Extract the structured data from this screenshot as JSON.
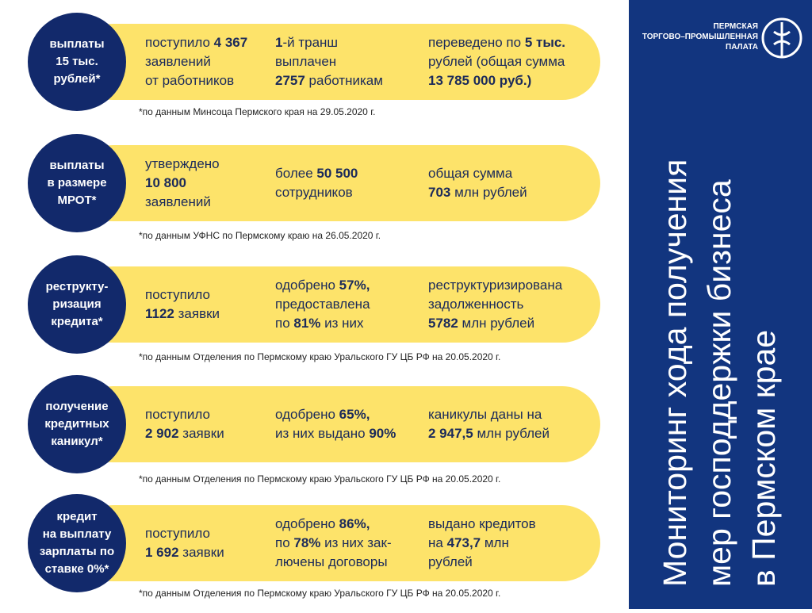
{
  "logo": [
    "ПЕРМСКАЯ",
    "ТОРГОВО–ПРОМЫШЛЕННАЯ",
    "ПАЛАТА"
  ],
  "title": [
    "Мониторинг хода получения",
    "мер господдержки бизнеса",
    "в Пермском крае"
  ],
  "rows": [
    {
      "label": [
        "выплаты",
        "15 тыс.",
        "рублей*"
      ],
      "cells": [
        [
          [
            {
              "t": "поступило "
            },
            {
              "t": "4 367",
              "b": true
            }
          ],
          [
            {
              "t": "заявлений"
            }
          ],
          [
            {
              "t": "от работников"
            }
          ]
        ],
        [
          [
            {
              "t": "1",
              "b": true
            },
            {
              "t": "-й транш"
            }
          ],
          [
            {
              "t": "выплачен"
            }
          ],
          [
            {
              "t": "2757",
              "b": true
            },
            {
              "t": " работникам"
            }
          ]
        ],
        [
          [
            {
              "t": "переведено по "
            },
            {
              "t": "5 тыс.",
              "b": true
            }
          ],
          [
            {
              "t": "рублей (общая сумма"
            }
          ],
          [
            {
              "t": "13 785 000 руб.)",
              "b": true
            }
          ]
        ]
      ],
      "note": "*по данным Минсоца Пермского края на 29.05.2020 г."
    },
    {
      "label": [
        "выплаты",
        "в размере",
        "МРОТ*"
      ],
      "cells": [
        [
          [
            {
              "t": "утверждено"
            }
          ],
          [
            {
              "t": "10 800",
              "b": true
            }
          ],
          [
            {
              "t": "заявлений"
            }
          ]
        ],
        [
          [
            {
              "t": "более "
            },
            {
              "t": "50 500",
              "b": true
            }
          ],
          [
            {
              "t": "сотрудников"
            }
          ]
        ],
        [
          [
            {
              "t": "общая сумма"
            }
          ],
          [
            {
              "t": "703",
              "b": true
            },
            {
              "t": " млн рублей"
            }
          ]
        ]
      ],
      "note": "*по данным УФНС по Пермскому краю на 26.05.2020 г."
    },
    {
      "label": [
        "реструкту-",
        "ризация",
        "кредита*"
      ],
      "cells": [
        [
          [
            {
              "t": "поступило"
            }
          ],
          [
            {
              "t": "1122",
              "b": true
            },
            {
              "t": " заявки"
            }
          ]
        ],
        [
          [
            {
              "t": "одобрено "
            },
            {
              "t": "57%,",
              "b": true
            }
          ],
          [
            {
              "t": "предоставлена"
            }
          ],
          [
            {
              "t": "по "
            },
            {
              "t": "81%",
              "b": true
            },
            {
              "t": " из них"
            }
          ]
        ],
        [
          [
            {
              "t": "реструктуризирована"
            }
          ],
          [
            {
              "t": "задолженность"
            }
          ],
          [
            {
              "t": "5782",
              "b": true
            },
            {
              "t": " млн рублей"
            }
          ]
        ]
      ],
      "note": "*по данным Отделения по Пермскому краю Уральского ГУ ЦБ РФ на 20.05.2020 г."
    },
    {
      "label": [
        "получение",
        "кредитных",
        "каникул*"
      ],
      "cells": [
        [
          [
            {
              "t": "поступило"
            }
          ],
          [
            {
              "t": "2 902",
              "b": true
            },
            {
              "t": " заявки"
            }
          ]
        ],
        [
          [
            {
              "t": "одобрено "
            },
            {
              "t": "65%,",
              "b": true
            }
          ],
          [
            {
              "t": "из них выдано "
            },
            {
              "t": "90%",
              "b": true
            }
          ]
        ],
        [
          [
            {
              "t": "каникулы даны на"
            }
          ],
          [
            {
              "t": "2 947,5",
              "b": true
            },
            {
              "t": " млн рублей"
            }
          ]
        ]
      ],
      "note": "*по данным Отделения по Пермскому краю Уральского ГУ ЦБ РФ на 20.05.2020 г."
    },
    {
      "label": [
        "кредит",
        "на выплату",
        "зарплаты по",
        "ставке 0%*"
      ],
      "cells": [
        [
          [
            {
              "t": "поступило"
            }
          ],
          [
            {
              "t": "1 692",
              "b": true
            },
            {
              "t": " заявки"
            }
          ]
        ],
        [
          [
            {
              "t": "одобрено "
            },
            {
              "t": "86%,",
              "b": true
            }
          ],
          [
            {
              "t": "по "
            },
            {
              "t": "78%",
              "b": true
            },
            {
              "t": " из них зак-"
            }
          ],
          [
            {
              "t": "лючены договоры"
            }
          ]
        ],
        [
          [
            {
              "t": "выдано кредитов"
            }
          ],
          [
            {
              "t": "на "
            },
            {
              "t": "473,7",
              "b": true
            },
            {
              "t": " млн"
            }
          ],
          [
            {
              "t": "рублей"
            }
          ]
        ]
      ],
      "note": "*по данным Отделения по Пермскому краю Уральского ГУ ЦБ РФ на 20.05.2020 г."
    }
  ]
}
